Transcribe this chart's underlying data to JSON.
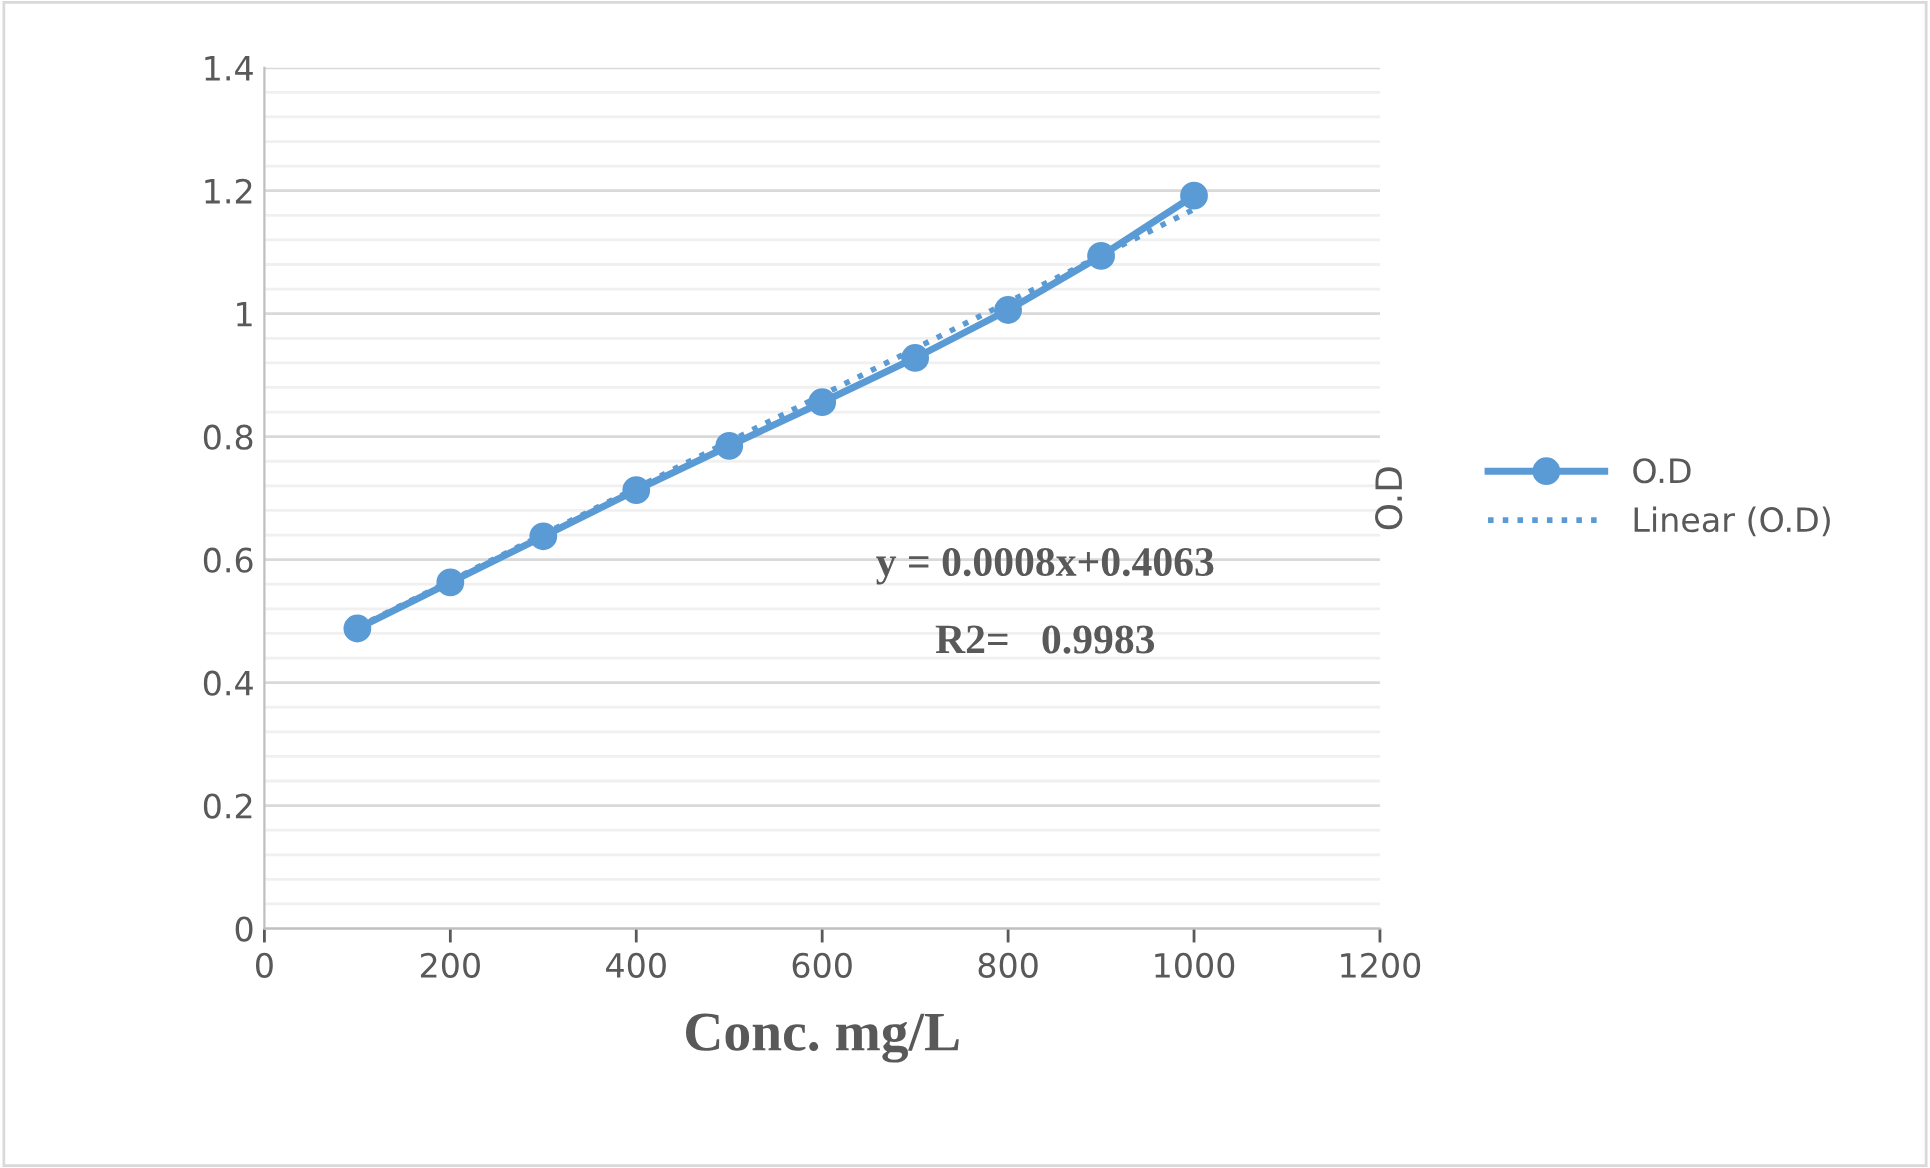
{
  "chart_data": {
    "type": "line",
    "xlabel": "Conc. mg/L",
    "ylabel": "O.D",
    "x": [
      100,
      200,
      300,
      400,
      500,
      600,
      700,
      800,
      900,
      1000
    ],
    "series": [
      {
        "name": "O.D",
        "color": "#5b9bd5",
        "marker": "circle",
        "line_style": "solid",
        "values": [
          0.488,
          0.563,
          0.638,
          0.713,
          0.785,
          0.856,
          0.928,
          1.006,
          1.094,
          1.192
        ]
      },
      {
        "name": "Linear (O.D)",
        "color": "#5b9bd5",
        "marker": "none",
        "line_style": "dotted",
        "x": [
          100,
          1000
        ],
        "values": [
          0.49,
          1.17
        ]
      }
    ],
    "annotations": [
      "y = 0.0008x+0.4063",
      "R2=   0.9983"
    ],
    "xlim": [
      0,
      1200
    ],
    "xticks": [
      0,
      200,
      400,
      600,
      800,
      1000,
      1200
    ],
    "ylim": [
      0,
      1.4
    ],
    "yticks": [
      0,
      0.2,
      0.4,
      0.6,
      0.8,
      1,
      1.2,
      1.4
    ],
    "grid": "y",
    "legend": "right"
  }
}
